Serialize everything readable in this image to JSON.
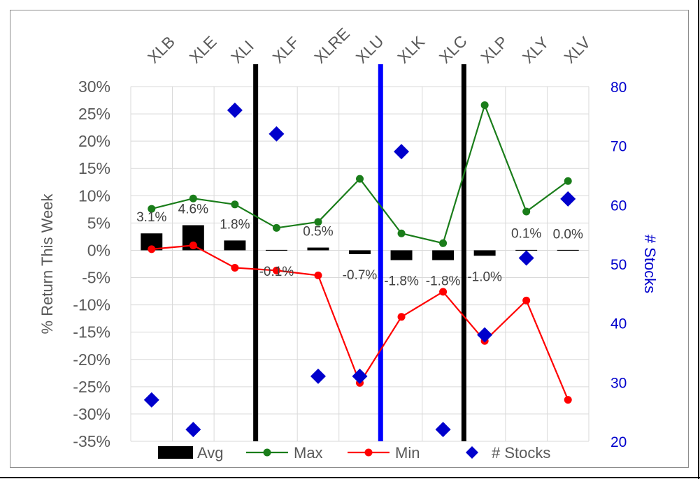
{
  "chart_data": {
    "type": "bar+line+scatter",
    "categories": [
      "XLB",
      "XLE",
      "XLI",
      "XLF",
      "XLRE",
      "XLU",
      "XLK",
      "XLC",
      "XLP",
      "XLY",
      "XLV"
    ],
    "series": [
      {
        "name": "Avg",
        "kind": "bar",
        "axis": "left",
        "unit": "%",
        "values": [
          3.1,
          4.6,
          1.8,
          -0.1,
          0.5,
          -0.7,
          -1.8,
          -1.8,
          -1.0,
          0.1,
          0.0
        ],
        "labels": [
          "3.1%",
          "4.6%",
          "1.8%",
          "-0.1%",
          "0.5%",
          "-0.7%",
          "-1.8%",
          "-1.8%",
          "-1.0%",
          "0.1%",
          "0.0%"
        ],
        "color": "#000000"
      },
      {
        "name": "Max",
        "kind": "line",
        "axis": "left",
        "unit": "%",
        "values": [
          7.6,
          9.5,
          8.4,
          4.1,
          5.2,
          13.1,
          3.1,
          1.3,
          26.6,
          7.1,
          12.7
        ],
        "color": "#1a7d1a"
      },
      {
        "name": "Min",
        "kind": "line",
        "axis": "left",
        "unit": "%",
        "values": [
          0.2,
          0.9,
          -3.2,
          -3.7,
          -4.6,
          -24.3,
          -12.2,
          -7.6,
          -16.6,
          -9.2,
          -27.4
        ],
        "color": "#ff0000"
      },
      {
        "name": "# Stocks",
        "kind": "scatter",
        "axis": "right",
        "values": [
          27,
          22,
          76,
          72,
          31,
          31,
          69,
          22,
          38,
          51,
          61
        ],
        "color": "#0000cc"
      }
    ],
    "ylabel": "% Return This Week",
    "y2label": "# Stocks",
    "ylim": [
      -35,
      30
    ],
    "y2lim": [
      20,
      80
    ],
    "yticks": [
      "30%",
      "25%",
      "20%",
      "15%",
      "10%",
      "5%",
      "0%",
      "-5%",
      "-10%",
      "-15%",
      "-20%",
      "-25%",
      "-30%",
      "-35%"
    ],
    "y2ticks": [
      "80",
      "70",
      "60",
      "50",
      "40",
      "30",
      "20"
    ],
    "grid": true,
    "legend_position": "bottom",
    "separators": [
      {
        "between": [
          "XLI",
          "XLF"
        ],
        "color": "#000000"
      },
      {
        "between": [
          "XLU",
          "XLK"
        ],
        "color": "#0000ff"
      },
      {
        "between": [
          "XLC",
          "XLP"
        ],
        "color": "#000000"
      }
    ],
    "axis_colors": {
      "left": "#595959",
      "right": "#0000cc"
    }
  }
}
